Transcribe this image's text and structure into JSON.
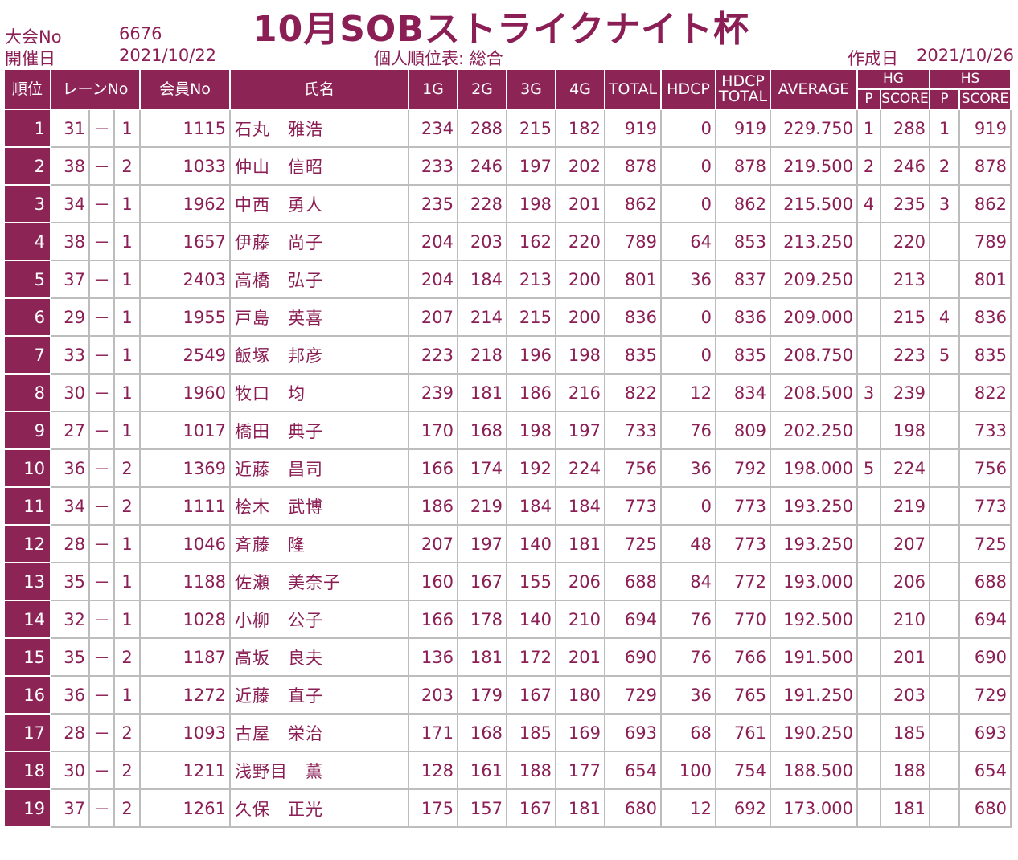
{
  "title": "10月SOBストライクナイト杯",
  "meta": {
    "taikai_label": "大会No",
    "taikai_value": "6676",
    "date_label": "開催日",
    "date_value": "2021/10/22",
    "report_label": "個人順位表: 総合",
    "created_label": "作成日",
    "created_value": "2021/10/26"
  },
  "headers": {
    "rank": "順位",
    "lane": "レーンNo",
    "member": "会員No",
    "name": "氏名",
    "g1": "1G",
    "g2": "2G",
    "g3": "3G",
    "g4": "4G",
    "total": "TOTAL",
    "hdcp": "HDCP",
    "hdcp_total_1": "HDCP",
    "hdcp_total_2": "TOTAL",
    "average": "AVERAGE",
    "hg": "HG",
    "hs": "HS",
    "p": "P",
    "score": "SCORE"
  },
  "rows": [
    {
      "rank": "1",
      "lane": "31",
      "dash": "－",
      "lane_sub": "1",
      "member": "1115",
      "name": "石丸　雅浩",
      "g1": "234",
      "g2": "288",
      "g3": "215",
      "g4": "182",
      "total": "919",
      "hdcp": "0",
      "hdcp_total": "919",
      "average": "229.750",
      "hg_p": "1",
      "hg_score": "288",
      "hs_p": "1",
      "hs_score": "919"
    },
    {
      "rank": "2",
      "lane": "38",
      "dash": "－",
      "lane_sub": "2",
      "member": "1033",
      "name": "仲山　信昭",
      "g1": "233",
      "g2": "246",
      "g3": "197",
      "g4": "202",
      "total": "878",
      "hdcp": "0",
      "hdcp_total": "878",
      "average": "219.500",
      "hg_p": "2",
      "hg_score": "246",
      "hs_p": "2",
      "hs_score": "878"
    },
    {
      "rank": "3",
      "lane": "34",
      "dash": "－",
      "lane_sub": "1",
      "member": "1962",
      "name": "中西　勇人",
      "g1": "235",
      "g2": "228",
      "g3": "198",
      "g4": "201",
      "total": "862",
      "hdcp": "0",
      "hdcp_total": "862",
      "average": "215.500",
      "hg_p": "4",
      "hg_score": "235",
      "hs_p": "3",
      "hs_score": "862"
    },
    {
      "rank": "4",
      "lane": "38",
      "dash": "－",
      "lane_sub": "1",
      "member": "1657",
      "name": "伊藤　尚子",
      "g1": "204",
      "g2": "203",
      "g3": "162",
      "g4": "220",
      "total": "789",
      "hdcp": "64",
      "hdcp_total": "853",
      "average": "213.250",
      "hg_p": "",
      "hg_score": "220",
      "hs_p": "",
      "hs_score": "789"
    },
    {
      "rank": "5",
      "lane": "37",
      "dash": "－",
      "lane_sub": "1",
      "member": "2403",
      "name": "高橋　弘子",
      "g1": "204",
      "g2": "184",
      "g3": "213",
      "g4": "200",
      "total": "801",
      "hdcp": "36",
      "hdcp_total": "837",
      "average": "209.250",
      "hg_p": "",
      "hg_score": "213",
      "hs_p": "",
      "hs_score": "801"
    },
    {
      "rank": "6",
      "lane": "29",
      "dash": "－",
      "lane_sub": "1",
      "member": "1955",
      "name": "戸島　英喜",
      "g1": "207",
      "g2": "214",
      "g3": "215",
      "g4": "200",
      "total": "836",
      "hdcp": "0",
      "hdcp_total": "836",
      "average": "209.000",
      "hg_p": "",
      "hg_score": "215",
      "hs_p": "4",
      "hs_score": "836"
    },
    {
      "rank": "7",
      "lane": "33",
      "dash": "－",
      "lane_sub": "1",
      "member": "2549",
      "name": "飯塚　邦彦",
      "g1": "223",
      "g2": "218",
      "g3": "196",
      "g4": "198",
      "total": "835",
      "hdcp": "0",
      "hdcp_total": "835",
      "average": "208.750",
      "hg_p": "",
      "hg_score": "223",
      "hs_p": "5",
      "hs_score": "835"
    },
    {
      "rank": "8",
      "lane": "30",
      "dash": "－",
      "lane_sub": "1",
      "member": "1960",
      "name": "牧口　均",
      "g1": "239",
      "g2": "181",
      "g3": "186",
      "g4": "216",
      "total": "822",
      "hdcp": "12",
      "hdcp_total": "834",
      "average": "208.500",
      "hg_p": "3",
      "hg_score": "239",
      "hs_p": "",
      "hs_score": "822"
    },
    {
      "rank": "9",
      "lane": "27",
      "dash": "－",
      "lane_sub": "1",
      "member": "1017",
      "name": "橋田　典子",
      "g1": "170",
      "g2": "168",
      "g3": "198",
      "g4": "197",
      "total": "733",
      "hdcp": "76",
      "hdcp_total": "809",
      "average": "202.250",
      "hg_p": "",
      "hg_score": "198",
      "hs_p": "",
      "hs_score": "733"
    },
    {
      "rank": "10",
      "lane": "36",
      "dash": "－",
      "lane_sub": "2",
      "member": "1369",
      "name": "近藤　昌司",
      "g1": "166",
      "g2": "174",
      "g3": "192",
      "g4": "224",
      "total": "756",
      "hdcp": "36",
      "hdcp_total": "792",
      "average": "198.000",
      "hg_p": "5",
      "hg_score": "224",
      "hs_p": "",
      "hs_score": "756"
    },
    {
      "rank": "11",
      "lane": "34",
      "dash": "－",
      "lane_sub": "2",
      "member": "1111",
      "name": "桧木　武博",
      "g1": "186",
      "g2": "219",
      "g3": "184",
      "g4": "184",
      "total": "773",
      "hdcp": "0",
      "hdcp_total": "773",
      "average": "193.250",
      "hg_p": "",
      "hg_score": "219",
      "hs_p": "",
      "hs_score": "773"
    },
    {
      "rank": "12",
      "lane": "28",
      "dash": "－",
      "lane_sub": "1",
      "member": "1046",
      "name": "斉藤　隆",
      "g1": "207",
      "g2": "197",
      "g3": "140",
      "g4": "181",
      "total": "725",
      "hdcp": "48",
      "hdcp_total": "773",
      "average": "193.250",
      "hg_p": "",
      "hg_score": "207",
      "hs_p": "",
      "hs_score": "725"
    },
    {
      "rank": "13",
      "lane": "35",
      "dash": "－",
      "lane_sub": "1",
      "member": "1188",
      "name": "佐瀬　美奈子",
      "g1": "160",
      "g2": "167",
      "g3": "155",
      "g4": "206",
      "total": "688",
      "hdcp": "84",
      "hdcp_total": "772",
      "average": "193.000",
      "hg_p": "",
      "hg_score": "206",
      "hs_p": "",
      "hs_score": "688"
    },
    {
      "rank": "14",
      "lane": "32",
      "dash": "－",
      "lane_sub": "1",
      "member": "1028",
      "name": "小柳　公子",
      "g1": "166",
      "g2": "178",
      "g3": "140",
      "g4": "210",
      "total": "694",
      "hdcp": "76",
      "hdcp_total": "770",
      "average": "192.500",
      "hg_p": "",
      "hg_score": "210",
      "hs_p": "",
      "hs_score": "694"
    },
    {
      "rank": "15",
      "lane": "35",
      "dash": "－",
      "lane_sub": "2",
      "member": "1187",
      "name": "高坂　良夫",
      "g1": "136",
      "g2": "181",
      "g3": "172",
      "g4": "201",
      "total": "690",
      "hdcp": "76",
      "hdcp_total": "766",
      "average": "191.500",
      "hg_p": "",
      "hg_score": "201",
      "hs_p": "",
      "hs_score": "690"
    },
    {
      "rank": "16",
      "lane": "36",
      "dash": "－",
      "lane_sub": "1",
      "member": "1272",
      "name": "近藤　直子",
      "g1": "203",
      "g2": "179",
      "g3": "167",
      "g4": "180",
      "total": "729",
      "hdcp": "36",
      "hdcp_total": "765",
      "average": "191.250",
      "hg_p": "",
      "hg_score": "203",
      "hs_p": "",
      "hs_score": "729"
    },
    {
      "rank": "17",
      "lane": "28",
      "dash": "－",
      "lane_sub": "2",
      "member": "1093",
      "name": "古屋　栄治",
      "g1": "171",
      "g2": "168",
      "g3": "185",
      "g4": "169",
      "total": "693",
      "hdcp": "68",
      "hdcp_total": "761",
      "average": "190.250",
      "hg_p": "",
      "hg_score": "185",
      "hs_p": "",
      "hs_score": "693"
    },
    {
      "rank": "18",
      "lane": "30",
      "dash": "－",
      "lane_sub": "2",
      "member": "1211",
      "name": "浅野目　薫",
      "g1": "128",
      "g2": "161",
      "g3": "188",
      "g4": "177",
      "total": "654",
      "hdcp": "100",
      "hdcp_total": "754",
      "average": "188.500",
      "hg_p": "",
      "hg_score": "188",
      "hs_p": "",
      "hs_score": "654"
    },
    {
      "rank": "19",
      "lane": "37",
      "dash": "－",
      "lane_sub": "2",
      "member": "1261",
      "name": "久保　正光",
      "g1": "175",
      "g2": "157",
      "g3": "167",
      "g4": "181",
      "total": "680",
      "hdcp": "12",
      "hdcp_total": "692",
      "average": "173.000",
      "hg_p": "",
      "hg_score": "181",
      "hs_p": "",
      "hs_score": "680"
    }
  ]
}
